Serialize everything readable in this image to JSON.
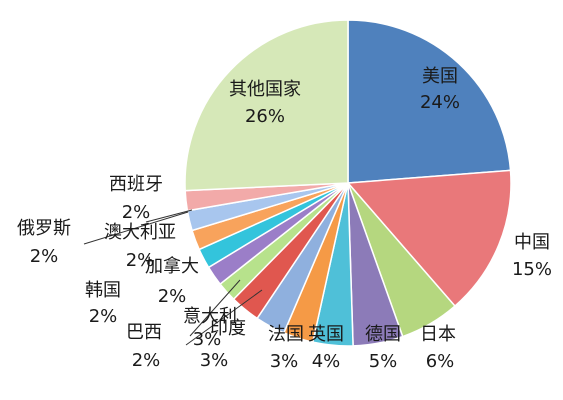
{
  "chart_data": {
    "type": "pie",
    "title": "",
    "start_angle_deg": -90,
    "direction": "clockwise",
    "slices": [
      {
        "name": "美国",
        "percent_label": "24%",
        "value": 24,
        "color": "#4f81bd"
      },
      {
        "name": "中国",
        "percent_label": "15%",
        "value": 15,
        "color": "#e9787a"
      },
      {
        "name": "日本",
        "percent_label": "6%",
        "value": 6,
        "color": "#b5d77f"
      },
      {
        "name": "德国",
        "percent_label": "5%",
        "value": 5,
        "color": "#8c7bb8"
      },
      {
        "name": "英国",
        "percent_label": "4%",
        "value": 4,
        "color": "#4fc0d8"
      },
      {
        "name": "法国",
        "percent_label": "3%",
        "value": 3,
        "color": "#f59a46"
      },
      {
        "name": "印度",
        "percent_label": "3%",
        "value": 3,
        "color": "#8fb0de"
      },
      {
        "name": "意大利",
        "percent_label": "3%",
        "value": 3,
        "color": "#e0574f"
      },
      {
        "name": "巴西",
        "percent_label": "2%",
        "value": 2,
        "color": "#b7e28c"
      },
      {
        "name": "加拿大",
        "percent_label": "2%",
        "value": 2,
        "color": "#9b7ec8"
      },
      {
        "name": "韩国",
        "percent_label": "2%",
        "value": 2,
        "color": "#33c4dc"
      },
      {
        "name": "澳大利亚",
        "percent_label": "2%",
        "value": 2,
        "color": "#f8a35c"
      },
      {
        "name": "俄罗斯",
        "percent_label": "2%",
        "value": 2,
        "color": "#a8c6ee"
      },
      {
        "name": "西班牙",
        "percent_label": "2%",
        "value": 2,
        "color": "#f2aaa9"
      },
      {
        "name": "其他国家",
        "percent_label": "26%",
        "value": 26,
        "color": "#d6e8b8"
      }
    ]
  }
}
